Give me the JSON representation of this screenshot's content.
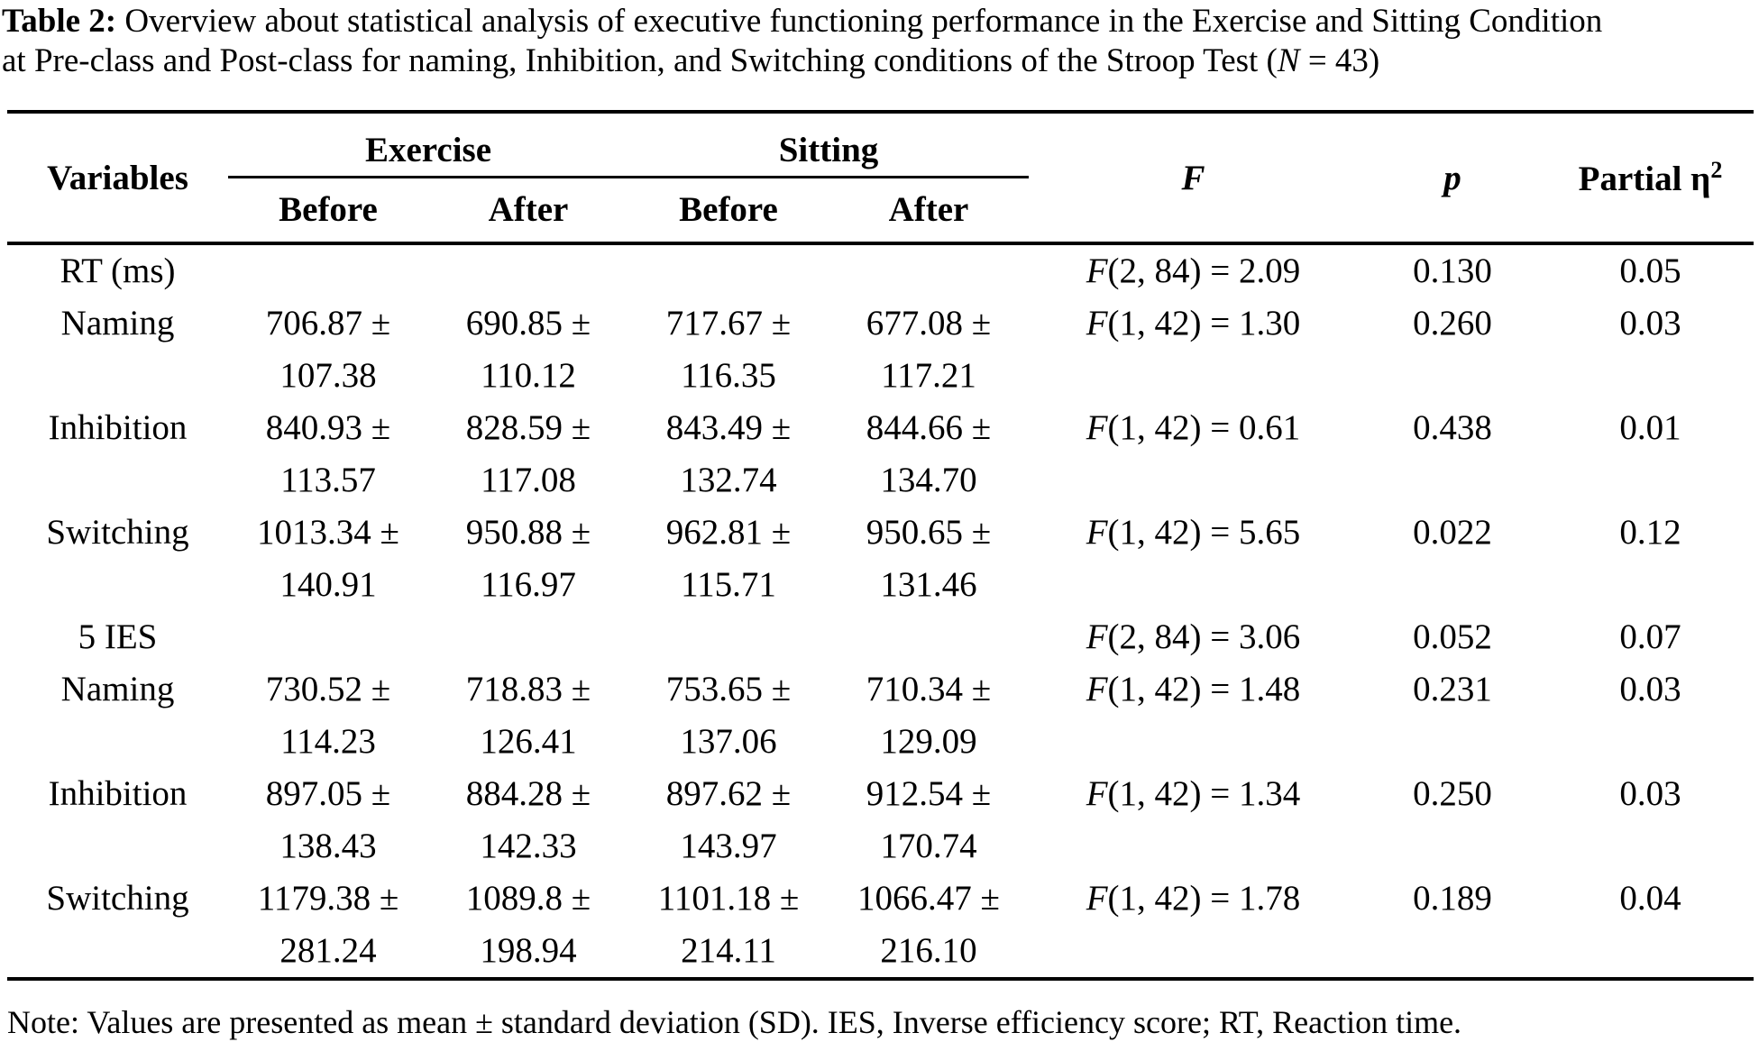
{
  "caption": {
    "label": "Table 2:",
    "line1_text": " Overview about statistical analysis of executive functioning performance in the Exercise and Sitting Condition",
    "line2_text": "at Pre-class and Post-class for naming, Inhibition, and Switching conditions of the Stroop Test (",
    "line2_n": "N",
    "line2_tail": " = 43)"
  },
  "header": {
    "variables": "Variables",
    "exercise": "Exercise",
    "sitting": "Sitting",
    "f": "F",
    "p": "p",
    "partial_eta": "Partial η",
    "eta_sup": "2",
    "sub": [
      "Before",
      "After",
      "Before",
      "After"
    ]
  },
  "rows": [
    {
      "variable": "RT (ms)",
      "f_label": "F",
      "f_value": "(2, 84) = 2.09",
      "p": "0.130",
      "eta": "0.05"
    },
    {
      "variable": "Naming",
      "values": [
        {
          "mean": "706.87 ±",
          "sd": "107.38"
        },
        {
          "mean": "690.85 ±",
          "sd": "110.12"
        },
        {
          "mean": "717.67 ±",
          "sd": "116.35"
        },
        {
          "mean": "677.08 ±",
          "sd": "117.21"
        }
      ],
      "f_label": "F",
      "f_value": "(1, 42) = 1.30",
      "p": "0.260",
      "eta": "0.03"
    },
    {
      "variable": "Inhibition",
      "values": [
        {
          "mean": "840.93 ±",
          "sd": "113.57"
        },
        {
          "mean": "828.59 ±",
          "sd": "117.08"
        },
        {
          "mean": "843.49 ±",
          "sd": "132.74"
        },
        {
          "mean": "844.66 ±",
          "sd": "134.70"
        }
      ],
      "f_label": "F",
      "f_value": "(1, 42) = 0.61",
      "p": "0.438",
      "eta": "0.01"
    },
    {
      "variable": "Switching",
      "values": [
        {
          "mean": "1013.34 ±",
          "sd": "140.91"
        },
        {
          "mean": "950.88 ±",
          "sd": "116.97"
        },
        {
          "mean": "962.81 ±",
          "sd": "115.71"
        },
        {
          "mean": "950.65 ±",
          "sd": "131.46"
        }
      ],
      "f_label": "F",
      "f_value": "(1, 42) = 5.65",
      "p": "0.022",
      "eta": "0.12"
    },
    {
      "variable": "5 IES",
      "f_label": "F",
      "f_value": "(2, 84) = 3.06",
      "p": "0.052",
      "eta": "0.07"
    },
    {
      "variable": "Naming",
      "values": [
        {
          "mean": "730.52 ±",
          "sd": "114.23"
        },
        {
          "mean": "718.83 ±",
          "sd": "126.41"
        },
        {
          "mean": "753.65 ±",
          "sd": "137.06"
        },
        {
          "mean": "710.34 ±",
          "sd": "129.09"
        }
      ],
      "f_label": "F",
      "f_value": "(1, 42) = 1.48",
      "p": "0.231",
      "eta": "0.03"
    },
    {
      "variable": "Inhibition",
      "values": [
        {
          "mean": "897.05 ±",
          "sd": "138.43"
        },
        {
          "mean": "884.28 ±",
          "sd": "142.33"
        },
        {
          "mean": "897.62 ±",
          "sd": "143.97"
        },
        {
          "mean": "912.54 ±",
          "sd": "170.74"
        }
      ],
      "f_label": "F",
      "f_value": "(1, 42) = 1.34",
      "p": "0.250",
      "eta": "0.03"
    },
    {
      "variable": "Switching",
      "values": [
        {
          "mean": "1179.38 ±",
          "sd": "281.24"
        },
        {
          "mean": "1089.8 ±",
          "sd": "198.94"
        },
        {
          "mean": "1101.18 ±",
          "sd": "214.11"
        },
        {
          "mean": "1066.47 ±",
          "sd": "216.10"
        }
      ],
      "f_label": "F",
      "f_value": "(1, 42) = 1.78",
      "p": "0.189",
      "eta": "0.04"
    }
  ],
  "note": "Note: Values are presented as mean ± standard deviation (SD). IES, Inverse efficiency score; RT, Reaction time."
}
